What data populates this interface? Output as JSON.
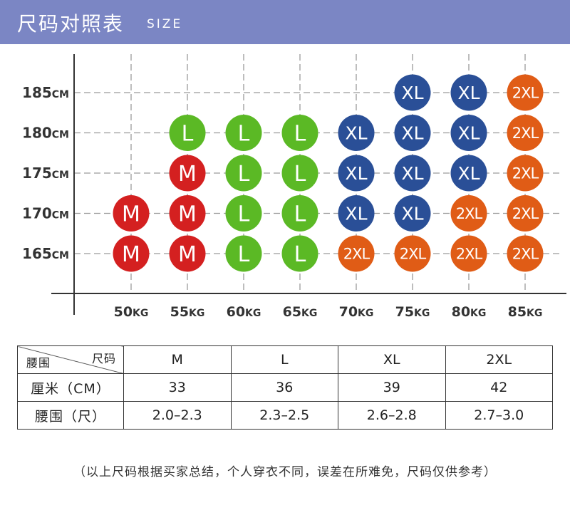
{
  "header": {
    "title": "尺码对照表",
    "subtitle": "SIZE"
  },
  "colors": {
    "M": "#d42020",
    "L": "#5bb925",
    "XL": "#2a4f97",
    "2XL": "#e05c16",
    "header_bg": "#7b86c4"
  },
  "chart_data": {
    "type": "table",
    "y_values": [
      185,
      180,
      175,
      170,
      165
    ],
    "y_unit": "CM",
    "x_values": [
      50,
      55,
      60,
      65,
      70,
      75,
      80,
      85
    ],
    "x_unit": "KG",
    "grid": true,
    "cells": [
      [
        null,
        null,
        null,
        null,
        null,
        "XL",
        "XL",
        "2XL"
      ],
      [
        null,
        "L",
        "L",
        "L",
        "XL",
        "XL",
        "XL",
        "2XL"
      ],
      [
        null,
        "M",
        "L",
        "L",
        "XL",
        "XL",
        "XL",
        "2XL"
      ],
      [
        "M",
        "M",
        "L",
        "L",
        "XL",
        "XL",
        "2XL",
        "2XL"
      ],
      [
        "M",
        "M",
        "L",
        "L",
        "2XL",
        "2XL",
        "2XL",
        "2XL"
      ]
    ]
  },
  "table": {
    "corner_top": "尺码",
    "corner_bottom": "腰围",
    "sizes": [
      "M",
      "L",
      "XL",
      "2XL"
    ],
    "rows": [
      {
        "label": "厘米（CM）",
        "values": [
          "33",
          "36",
          "39",
          "42"
        ]
      },
      {
        "label": "腰围（尺）",
        "values": [
          "2.0–2.3",
          "2.3–2.5",
          "2.6–2.8",
          "2.7–3.0"
        ]
      }
    ]
  },
  "note": "（以上尺码根据买家总结，个人穿衣不同，误差在所难免，尺码仅供参考）"
}
